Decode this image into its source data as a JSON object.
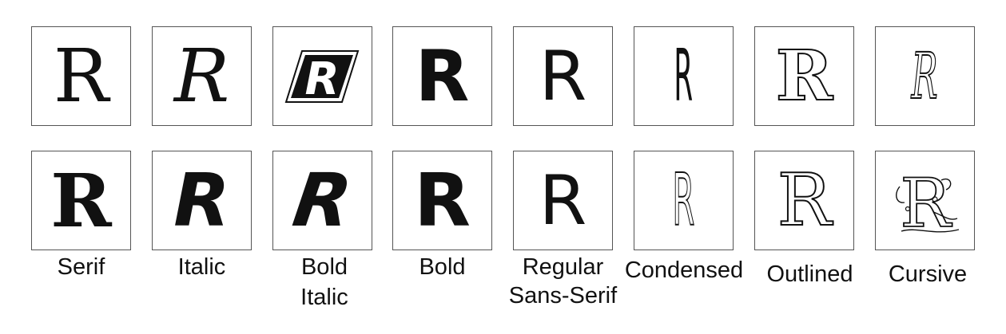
{
  "figure": {
    "glyph_letter": "R",
    "columns": [
      {
        "caption_lines": [
          "Serif"
        ]
      },
      {
        "caption_lines": [
          "Italic"
        ]
      },
      {
        "caption_lines": [
          "Bold",
          "Italic"
        ]
      },
      {
        "caption_lines": [
          "Bold"
        ]
      },
      {
        "caption_lines": [
          "Regular",
          "Sans-Serif"
        ]
      },
      {
        "caption_lines": [
          "Condensed"
        ]
      },
      {
        "caption_lines": [
          "Outlined"
        ]
      },
      {
        "caption_lines": [
          "Cursive"
        ]
      }
    ],
    "rows": [
      {
        "glyphs": [
          "R",
          "R",
          "R",
          "R",
          "R",
          "R",
          "R",
          "R"
        ]
      },
      {
        "glyphs": [
          "R",
          "R",
          "R",
          "R",
          "R",
          "R",
          "R",
          "R"
        ]
      }
    ],
    "colors": {
      "tile_border": "#555555",
      "glyph": "#111111",
      "background": "#ffffff"
    }
  }
}
